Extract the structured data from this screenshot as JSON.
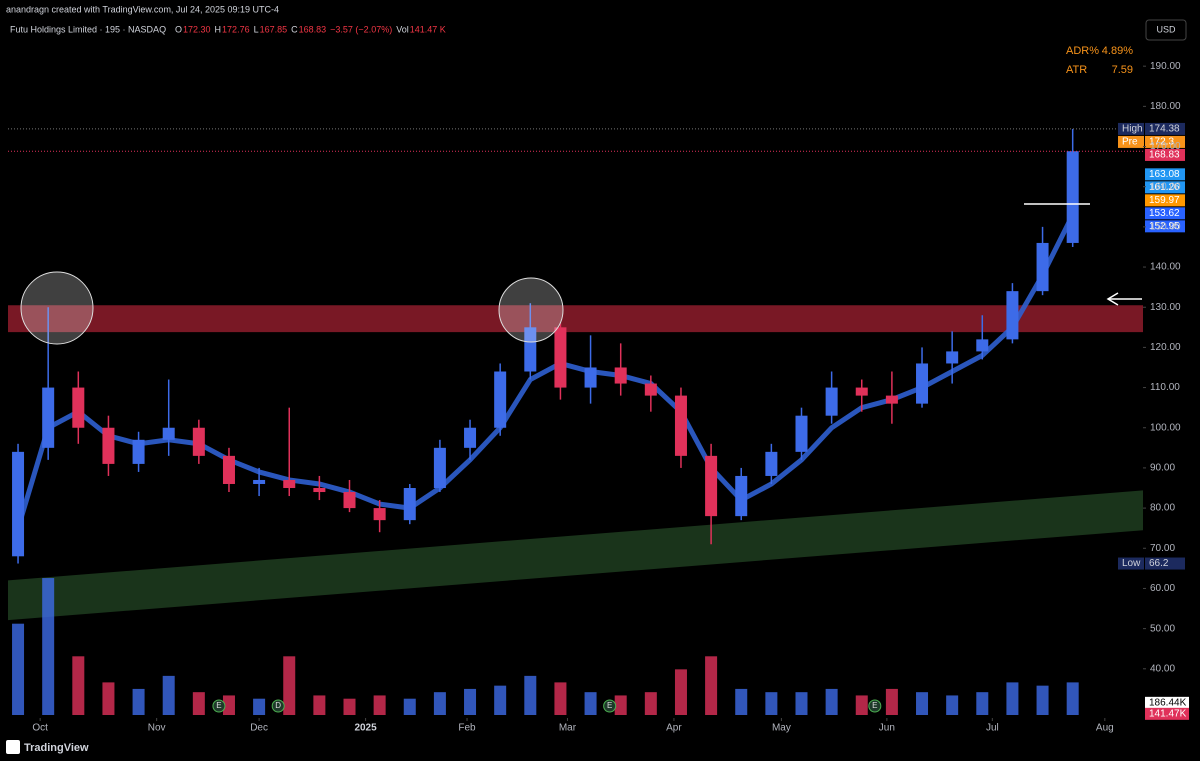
{
  "header": {
    "author_line": "anandragn created with TradingView.com, Jul 24, 2025 09:19 UTC-4",
    "symbol": "Futu Holdings Limited · 195 · NASDAQ",
    "ohlc": [
      {
        "key": "O",
        "value": "172.30"
      },
      {
        "key": "H",
        "value": "172.76"
      },
      {
        "key": "L",
        "value": "167.85"
      },
      {
        "key": "C",
        "value": "168.83"
      }
    ],
    "change": "−3.57 (−2.07%)",
    "volume_key": "Vol",
    "volume_value": "141.47 K",
    "currency": "USD",
    "indicators": [
      {
        "name": "ADR%",
        "value": "4.89%"
      },
      {
        "name": "ATR",
        "value": "7.59"
      }
    ],
    "brand": "TradingView"
  },
  "chart_data": {
    "type": "candlestick",
    "up_color": "#3d6be8",
    "down_color": "#e0315a",
    "x": [
      1,
      4,
      7,
      10,
      13,
      16,
      19,
      22,
      25,
      28,
      31,
      34,
      37,
      40,
      43,
      46,
      49,
      52,
      55,
      58,
      61,
      64,
      67,
      70,
      73,
      76,
      79,
      82,
      85,
      88,
      91,
      94,
      97,
      100,
      103,
      106
    ],
    "open": [
      68,
      95,
      110,
      100,
      91,
      97,
      100,
      93,
      86,
      87,
      85,
      84,
      80,
      77,
      85,
      95,
      100,
      114,
      125,
      110,
      115,
      111,
      108,
      93,
      78,
      88,
      94,
      103,
      110,
      108,
      106,
      116,
      119,
      122,
      134,
      146
    ],
    "high": [
      96,
      130,
      114,
      103,
      99,
      112,
      102,
      95,
      90,
      105,
      88,
      87,
      82,
      86,
      97,
      102,
      116,
      131,
      126,
      123,
      121,
      113,
      110,
      96,
      90,
      96,
      105,
      114,
      112,
      114,
      120,
      124,
      128,
      136,
      150,
      174.38
    ],
    "low": [
      66.2,
      92,
      96,
      88,
      89,
      93,
      91,
      84,
      83,
      83,
      82,
      79,
      74,
      76,
      84,
      92,
      98,
      112,
      107,
      106,
      108,
      104,
      90,
      71,
      77,
      86,
      92,
      101,
      104,
      101,
      105,
      111,
      117,
      121,
      133,
      145
    ],
    "close": [
      94,
      110,
      100,
      91,
      97,
      100,
      93,
      86,
      87,
      85,
      84,
      80,
      77,
      85,
      95,
      100,
      114,
      125,
      110,
      115,
      111,
      108,
      93,
      78,
      88,
      94,
      103,
      110,
      108,
      106,
      116,
      119,
      122,
      134,
      146,
      168.83
    ],
    "volume": [
      1400,
      2100,
      900,
      500,
      400,
      600,
      350,
      300,
      250,
      900,
      300,
      250,
      300,
      250,
      350,
      400,
      450,
      600,
      500,
      350,
      300,
      350,
      700,
      900,
      400,
      350,
      350,
      400,
      300,
      400,
      350,
      300,
      350,
      500,
      450,
      500
    ],
    "volume_lim": [
      0,
      2300
    ],
    "ma": {
      "color": "#2f5fd0",
      "values": [
        75,
        100,
        104,
        98,
        96,
        97,
        96,
        92,
        89,
        87,
        86,
        84,
        81,
        80,
        85,
        92,
        100,
        112,
        116,
        114,
        113,
        111,
        104,
        90,
        82,
        86,
        92,
        100,
        105,
        107,
        110,
        114,
        118,
        125,
        138,
        153
      ]
    },
    "xlim": [
      0,
      113
    ],
    "xticks": [
      {
        "value": 3.2,
        "label": "Oct"
      },
      {
        "value": 14.8,
        "label": "Nov"
      },
      {
        "value": 25.0,
        "label": "Dec"
      },
      {
        "value": 35.6,
        "label": "2025"
      },
      {
        "value": 45.7,
        "label": "Feb"
      },
      {
        "value": 55.7,
        "label": "Mar"
      },
      {
        "value": 66.3,
        "label": "Apr"
      },
      {
        "value": 77.0,
        "label": "May"
      },
      {
        "value": 87.5,
        "label": "Jun"
      },
      {
        "value": 98.0,
        "label": "Jul"
      },
      {
        "value": 109.2,
        "label": "Aug"
      }
    ],
    "ylim": [
      28,
      200
    ],
    "yticks": [
      {
        "value": 40,
        "label": "40.00"
      },
      {
        "value": 50,
        "label": "50.00"
      },
      {
        "value": 60,
        "label": "60.00"
      },
      {
        "value": 70,
        "label": "70.00"
      },
      {
        "value": 80,
        "label": "80.00"
      },
      {
        "value": 90,
        "label": "90.00"
      },
      {
        "value": 100,
        "label": "100.00"
      },
      {
        "value": 110,
        "label": "110.00"
      },
      {
        "value": 120,
        "label": "120.00"
      },
      {
        "value": 130,
        "label": "130.00"
      },
      {
        "value": 140,
        "label": "140.00"
      },
      {
        "value": 150,
        "label": "150.00"
      },
      {
        "value": 160,
        "label": "160.00"
      },
      {
        "value": 170,
        "label": "170.00"
      },
      {
        "value": 180,
        "label": "180.00"
      },
      {
        "value": 190,
        "label": "190.00"
      }
    ],
    "zones": [
      {
        "color": "#8e1c2c",
        "x": [
          0,
          113
        ],
        "low": [
          123.8,
          123.8
        ],
        "high": [
          130.5,
          130.5
        ]
      },
      {
        "color": "#1f3d20",
        "x": [
          0,
          113
        ],
        "low": [
          52.1,
          74.5
        ],
        "high": [
          62.0,
          84.4
        ]
      }
    ],
    "price_tags": [
      {
        "name": "High",
        "value": 174.38,
        "color": "#1c2a5e",
        "guide": true
      },
      {
        "name": "Pre",
        "value": 172.3,
        "color": "#f7931a"
      },
      {
        "value": 168.83,
        "color": "#e0315a",
        "guide": true
      },
      {
        "value": 163.08,
        "color": "#2196f3"
      },
      {
        "value": 161.26,
        "color": "#2196f3"
      },
      {
        "value": 159.97,
        "color": "#ff9800"
      },
      {
        "value": 153.62,
        "color": "#2962ff"
      },
      {
        "value": 152.95,
        "color": "#2962ff"
      },
      {
        "name": "Low",
        "value": 66.2,
        "color": "#1c2a5e"
      }
    ],
    "volume_tags": [
      {
        "value": 186.44,
        "label": "186.44K",
        "color": "#ffffff"
      },
      {
        "value": 141.47,
        "label": "141.47K",
        "color": "#e0315a"
      }
    ],
    "events": [
      {
        "label": "E",
        "x": 21.0
      },
      {
        "label": "D",
        "x": 26.9
      },
      {
        "label": "E",
        "x": 59.9
      },
      {
        "label": "E",
        "x": 86.3
      }
    ]
  }
}
